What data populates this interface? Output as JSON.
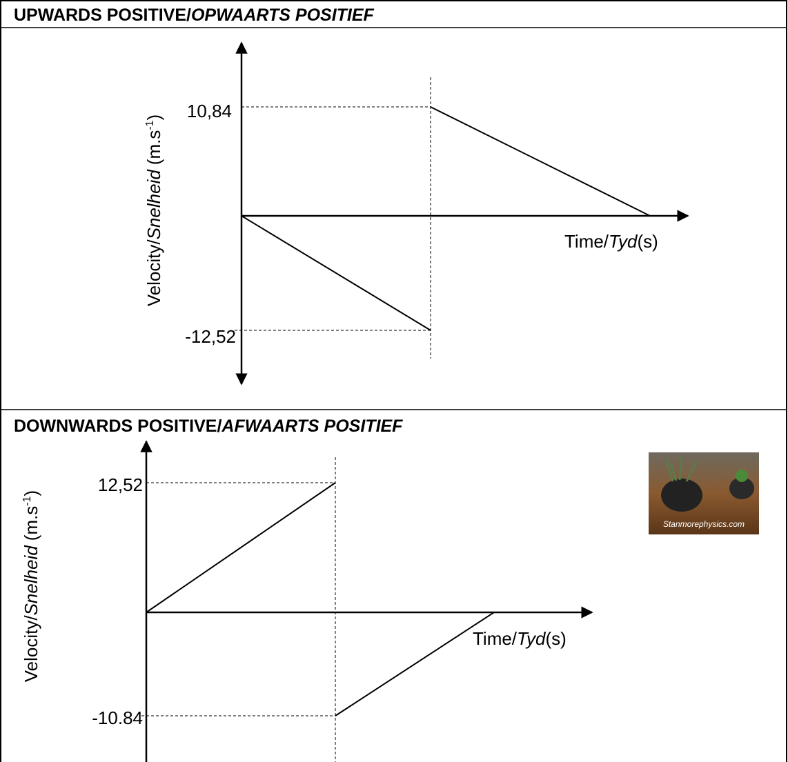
{
  "sections": [
    {
      "heading": {
        "text": "UPWARDS POSITIVE/",
        "italic": "OPWAARTS POSITIEF"
      },
      "graph": {
        "y_axis_label": {
          "text": "Velocity/",
          "italic": "Snelheid",
          "unit": "(m.s",
          "exponent": "-1",
          "close": ")"
        },
        "x_axis_label": {
          "text": "Time/",
          "italic": "Tyd",
          "unit": "(s)"
        },
        "labels": [
          "10,84",
          "-12,52"
        ]
      }
    },
    {
      "heading": {
        "text": "DOWNWARDS POSITIVE/",
        "italic": "AFWAARTS POSITIEF"
      },
      "graph": {
        "y_axis_label": {
          "text": "Velocity/",
          "italic": "Snelheid",
          "unit": "(m.s",
          "exponent": "-1",
          "close": ")"
        },
        "x_axis_label": {
          "text": "Time/",
          "italic": "Tyd",
          "unit": "(s)"
        },
        "labels": [
          "12,52",
          "-10.84"
        ]
      }
    }
  ],
  "watermark": "Stanmorephysics.com"
}
